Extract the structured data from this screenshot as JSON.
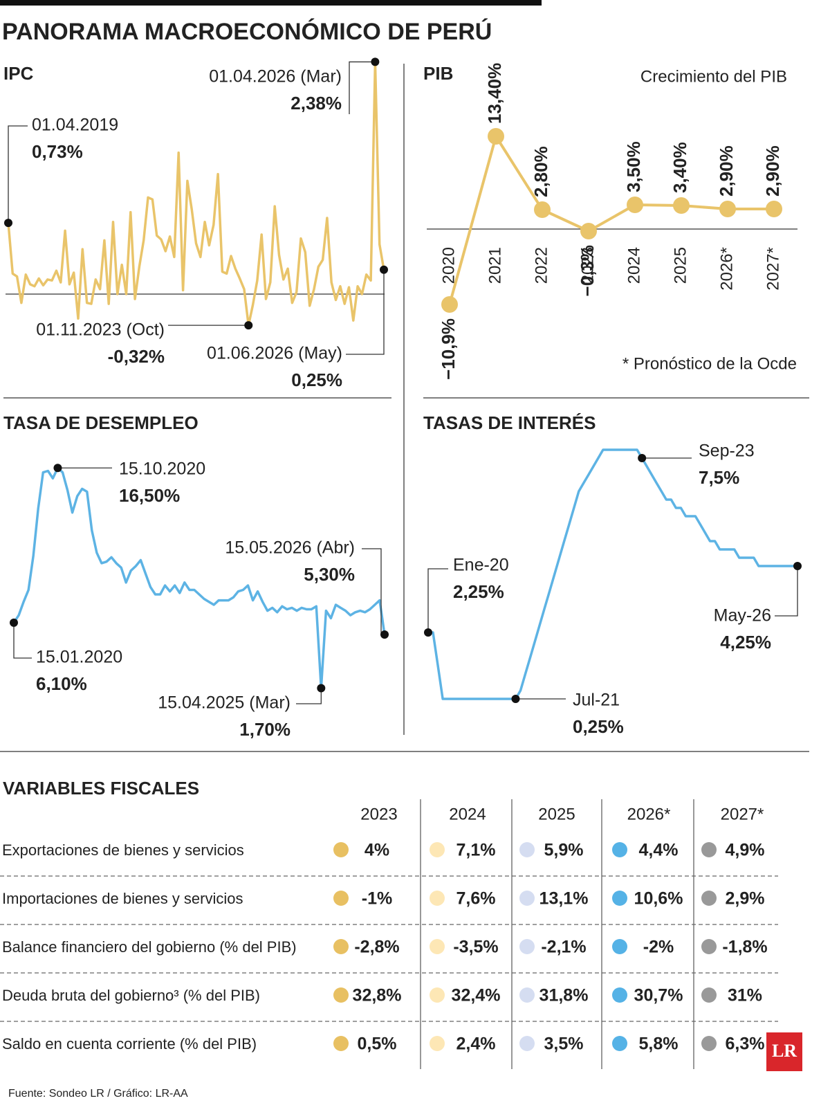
{
  "title": "PANORAMA MACROECONÓMICO DE PERÚ",
  "chart_data": [
    {
      "type": "line",
      "title": "IPC",
      "color": "#e9c46a",
      "categories": [
        "01.04.2019",
        null,
        null,
        null,
        null,
        null,
        null,
        null,
        null,
        null,
        null,
        null,
        null,
        null,
        null,
        null,
        null,
        null,
        null,
        null,
        null,
        null,
        null,
        null,
        null,
        null,
        null,
        null,
        null,
        null,
        null,
        null,
        null,
        null,
        null,
        null,
        null,
        null,
        null,
        null,
        null,
        null,
        null,
        null,
        null,
        null,
        null,
        null,
        null,
        null,
        null,
        null,
        null,
        null,
        null,
        "01.11.2023 (Oct)",
        null,
        null,
        null,
        null,
        null,
        null,
        null,
        null,
        null,
        null,
        null,
        null,
        null,
        null,
        null,
        null,
        null,
        null,
        null,
        null,
        null,
        null,
        null,
        null,
        null,
        null,
        null,
        null,
        "01.04.2026 (Mar)",
        null,
        "01.06.2026 (May)"
      ],
      "values": [
        0.73,
        0.21,
        0.18,
        -0.09,
        0.2,
        0.1,
        0.08,
        0.16,
        0.09,
        0.15,
        0.14,
        0.24,
        0.12,
        0.65,
        0.1,
        0.22,
        -0.25,
        0.46,
        -0.09,
        -0.1,
        0.15,
        0.05,
        0.55,
        -0.1,
        0.74,
        0.0,
        0.3,
        0.0,
        0.84,
        -0.05,
        0.28,
        0.55,
        0.99,
        0.97,
        0.6,
        0.56,
        0.44,
        0.59,
        0.38,
        1.45,
        0.04,
        1.16,
        0.87,
        0.52,
        0.38,
        0.74,
        0.5,
        0.71,
        1.23,
        0.23,
        0.21,
        0.39,
        0.26,
        0.16,
        0.05,
        -0.32,
        -0.11,
        0.14,
        0.61,
        -0.05,
        0.12,
        0.9,
        0.4,
        0.15,
        0.26,
        -0.09,
        0.02,
        0.57,
        0.43,
        -0.12,
        0.05,
        0.28,
        0.35,
        0.78,
        0.12,
        -0.06,
        0.08,
        -0.1,
        0.07,
        -0.27,
        0.08,
        0.0,
        0.2,
        0.14,
        2.38,
        0.51,
        0.25
      ],
      "value_labels": [
        "0,73%",
        null,
        null,
        null,
        null,
        null,
        null,
        null,
        null,
        null,
        null,
        null,
        null,
        null,
        null,
        null,
        null,
        null,
        null,
        null,
        null,
        null,
        null,
        null,
        null,
        null,
        null,
        null,
        null,
        null,
        null,
        null,
        null,
        null,
        null,
        null,
        null,
        null,
        null,
        null,
        null,
        null,
        null,
        null,
        null,
        null,
        null,
        null,
        null,
        null,
        null,
        null,
        null,
        null,
        null,
        "-0,32%",
        null,
        null,
        null,
        null,
        null,
        null,
        null,
        null,
        null,
        null,
        null,
        null,
        null,
        null,
        null,
        null,
        null,
        null,
        null,
        null,
        null,
        null,
        null,
        null,
        null,
        null,
        null,
        null,
        "2,38%",
        null,
        "0,25%"
      ]
    },
    {
      "type": "line",
      "title": "PIB",
      "subtitle": "Crecimiento del PIB",
      "note": "* Pronóstico de la Ocde",
      "color": "#e9c46a",
      "markers": true,
      "categories": [
        "2020",
        "2021",
        "2022",
        "2023",
        "2024",
        "2025",
        "2026*",
        "2027*"
      ],
      "values": [
        -10.9,
        13.4,
        2.8,
        -0.3,
        3.5,
        3.4,
        2.9,
        2.9
      ],
      "value_labels": [
        "−10,9%",
        "13,40%",
        "2,80%",
        "−0,3%",
        "3,50%",
        "3,40%",
        "2,90%",
        "2,90%"
      ]
    },
    {
      "type": "line",
      "title": "TASA DE DESEMPLEO",
      "color": "#5db3e4",
      "categories": [
        "15.01.2020",
        null,
        null,
        null,
        null,
        null,
        null,
        null,
        null,
        "15.10.2020",
        null,
        null,
        null,
        null,
        null,
        null,
        null,
        null,
        null,
        null,
        null,
        null,
        null,
        null,
        null,
        null,
        null,
        null,
        null,
        null,
        null,
        null,
        null,
        null,
        null,
        null,
        null,
        null,
        null,
        null,
        null,
        null,
        null,
        null,
        null,
        null,
        null,
        null,
        null,
        null,
        null,
        null,
        null,
        null,
        null,
        null,
        null,
        null,
        null,
        null,
        null,
        null,
        null,
        "15.04.2025 (Mar)",
        null,
        null,
        null,
        null,
        null,
        null,
        null,
        null,
        null,
        null,
        null,
        null,
        "15.05.2026 (Abr)"
      ],
      "values": [
        6.1,
        6.6,
        7.5,
        8.3,
        10.6,
        13.8,
        16.2,
        16.3,
        15.8,
        16.5,
        16.2,
        15.0,
        13.5,
        14.6,
        15.1,
        14.9,
        12.3,
        10.8,
        10.1,
        10.2,
        10.5,
        10.1,
        9.8,
        8.8,
        9.6,
        9.9,
        10.3,
        9.4,
        8.5,
        8.0,
        8.0,
        8.6,
        8.2,
        8.6,
        8.1,
        8.8,
        8.3,
        8.3,
        8.0,
        7.7,
        7.5,
        7.3,
        7.6,
        7.6,
        7.6,
        7.8,
        8.2,
        8.3,
        8.6,
        7.6,
        8.2,
        7.5,
        6.9,
        7.1,
        6.8,
        7.2,
        7.0,
        7.1,
        6.9,
        7.1,
        7.0,
        7.0,
        7.2,
        1.7,
        6.9,
        6.4,
        7.3,
        7.1,
        6.9,
        6.6,
        6.8,
        6.9,
        6.8,
        7.0,
        7.3,
        7.6,
        5.3
      ],
      "value_labels": [
        "6,10%",
        null,
        null,
        null,
        null,
        null,
        null,
        null,
        null,
        "16,50%",
        null,
        null,
        null,
        null,
        null,
        null,
        null,
        null,
        null,
        null,
        null,
        null,
        null,
        null,
        null,
        null,
        null,
        null,
        null,
        null,
        null,
        null,
        null,
        null,
        null,
        null,
        null,
        null,
        null,
        null,
        null,
        null,
        null,
        null,
        null,
        null,
        null,
        null,
        null,
        null,
        null,
        null,
        null,
        null,
        null,
        null,
        null,
        null,
        null,
        null,
        null,
        null,
        null,
        "1,70%",
        null,
        null,
        null,
        null,
        null,
        null,
        null,
        null,
        null,
        null,
        null,
        null,
        "5,30%"
      ]
    },
    {
      "type": "line",
      "title": "TASAS DE INTERÉS",
      "color": "#5db3e4",
      "categories": [
        "Ene-20",
        null,
        null,
        null,
        null,
        null,
        null,
        null,
        null,
        null,
        null,
        null,
        null,
        null,
        null,
        null,
        null,
        null,
        "Jul-21",
        null,
        null,
        null,
        null,
        null,
        null,
        null,
        null,
        null,
        null,
        null,
        null,
        null,
        null,
        null,
        null,
        null,
        null,
        null,
        null,
        null,
        null,
        null,
        null,
        null,
        "Sep-23",
        null,
        null,
        null,
        null,
        null,
        null,
        null,
        null,
        null,
        null,
        null,
        null,
        null,
        null,
        null,
        null,
        null,
        null,
        null,
        null,
        null,
        null,
        null,
        null,
        null,
        null,
        null,
        null,
        null,
        null,
        null,
        "May-26"
      ],
      "values": [
        2.25,
        2.25,
        1.25,
        0.25,
        0.25,
        0.25,
        0.25,
        0.25,
        0.25,
        0.25,
        0.25,
        0.25,
        0.25,
        0.25,
        0.25,
        0.25,
        0.25,
        0.25,
        0.25,
        0.5,
        1,
        1.5,
        2,
        2.5,
        3,
        3.5,
        4,
        4.5,
        5,
        5.5,
        6,
        6.5,
        6.75,
        7,
        7.25,
        7.5,
        7.75,
        7.75,
        7.75,
        7.75,
        7.75,
        7.75,
        7.75,
        7.75,
        7.5,
        7.25,
        7,
        6.75,
        6.5,
        6.25,
        6.25,
        6,
        6,
        5.75,
        5.75,
        5.75,
        5.5,
        5.25,
        5,
        5,
        4.75,
        4.75,
        4.75,
        4.75,
        4.5,
        4.5,
        4.5,
        4.5,
        4.25,
        4.25,
        4.25,
        4.25,
        4.25,
        4.25,
        4.25,
        4.25,
        4.25
      ],
      "value_labels": [
        "2,25%",
        null,
        null,
        null,
        null,
        null,
        null,
        null,
        null,
        null,
        null,
        null,
        null,
        null,
        null,
        null,
        null,
        null,
        "0,25%",
        null,
        null,
        null,
        null,
        null,
        null,
        null,
        null,
        null,
        null,
        null,
        null,
        null,
        null,
        null,
        null,
        null,
        null,
        null,
        null,
        null,
        null,
        null,
        null,
        null,
        "7,5%",
        null,
        null,
        null,
        null,
        null,
        null,
        null,
        null,
        null,
        null,
        null,
        null,
        null,
        null,
        null,
        null,
        null,
        null,
        null,
        null,
        null,
        null,
        null,
        null,
        null,
        null,
        null,
        null,
        null,
        null,
        null,
        "4,25%"
      ]
    }
  ],
  "table": {
    "title": "VARIABLES FISCALES",
    "columns": [
      "2023",
      "2024",
      "2025",
      "2026*",
      "2027*"
    ],
    "colors": [
      "#e8c062",
      "#fde7b5",
      "#d5ddf1",
      "#55b2e6",
      "#999999"
    ],
    "rows": [
      {
        "label": "Exportaciones de bienes y servicios",
        "values": [
          "4%",
          "7,1%",
          "5,9%",
          "4,4%",
          "4,9%"
        ]
      },
      {
        "label": "Importaciones de bienes y servicios",
        "values": [
          "-1%",
          "7,6%",
          "13,1%",
          "10,6%",
          "2,9%"
        ]
      },
      {
        "label": "Balance financiero del gobierno (% del PIB)",
        "values": [
          "-2,8%",
          "-3,5%",
          "-2,1%",
          "-2%",
          "-1,8%"
        ]
      },
      {
        "label": "Deuda bruta del gobierno³ (% del PIB)",
        "values": [
          "32,8%",
          "32,4%",
          "31,8%",
          "30,7%",
          "31%"
        ]
      },
      {
        "label": "Saldo en cuenta corriente (% del PIB)",
        "values": [
          "0,5%",
          "2,4%",
          "3,5%",
          "5,8%",
          "6,3%"
        ]
      }
    ]
  },
  "source": "Fuente: Sondeo LR / Gráfico: LR-AA",
  "logo": "LR"
}
